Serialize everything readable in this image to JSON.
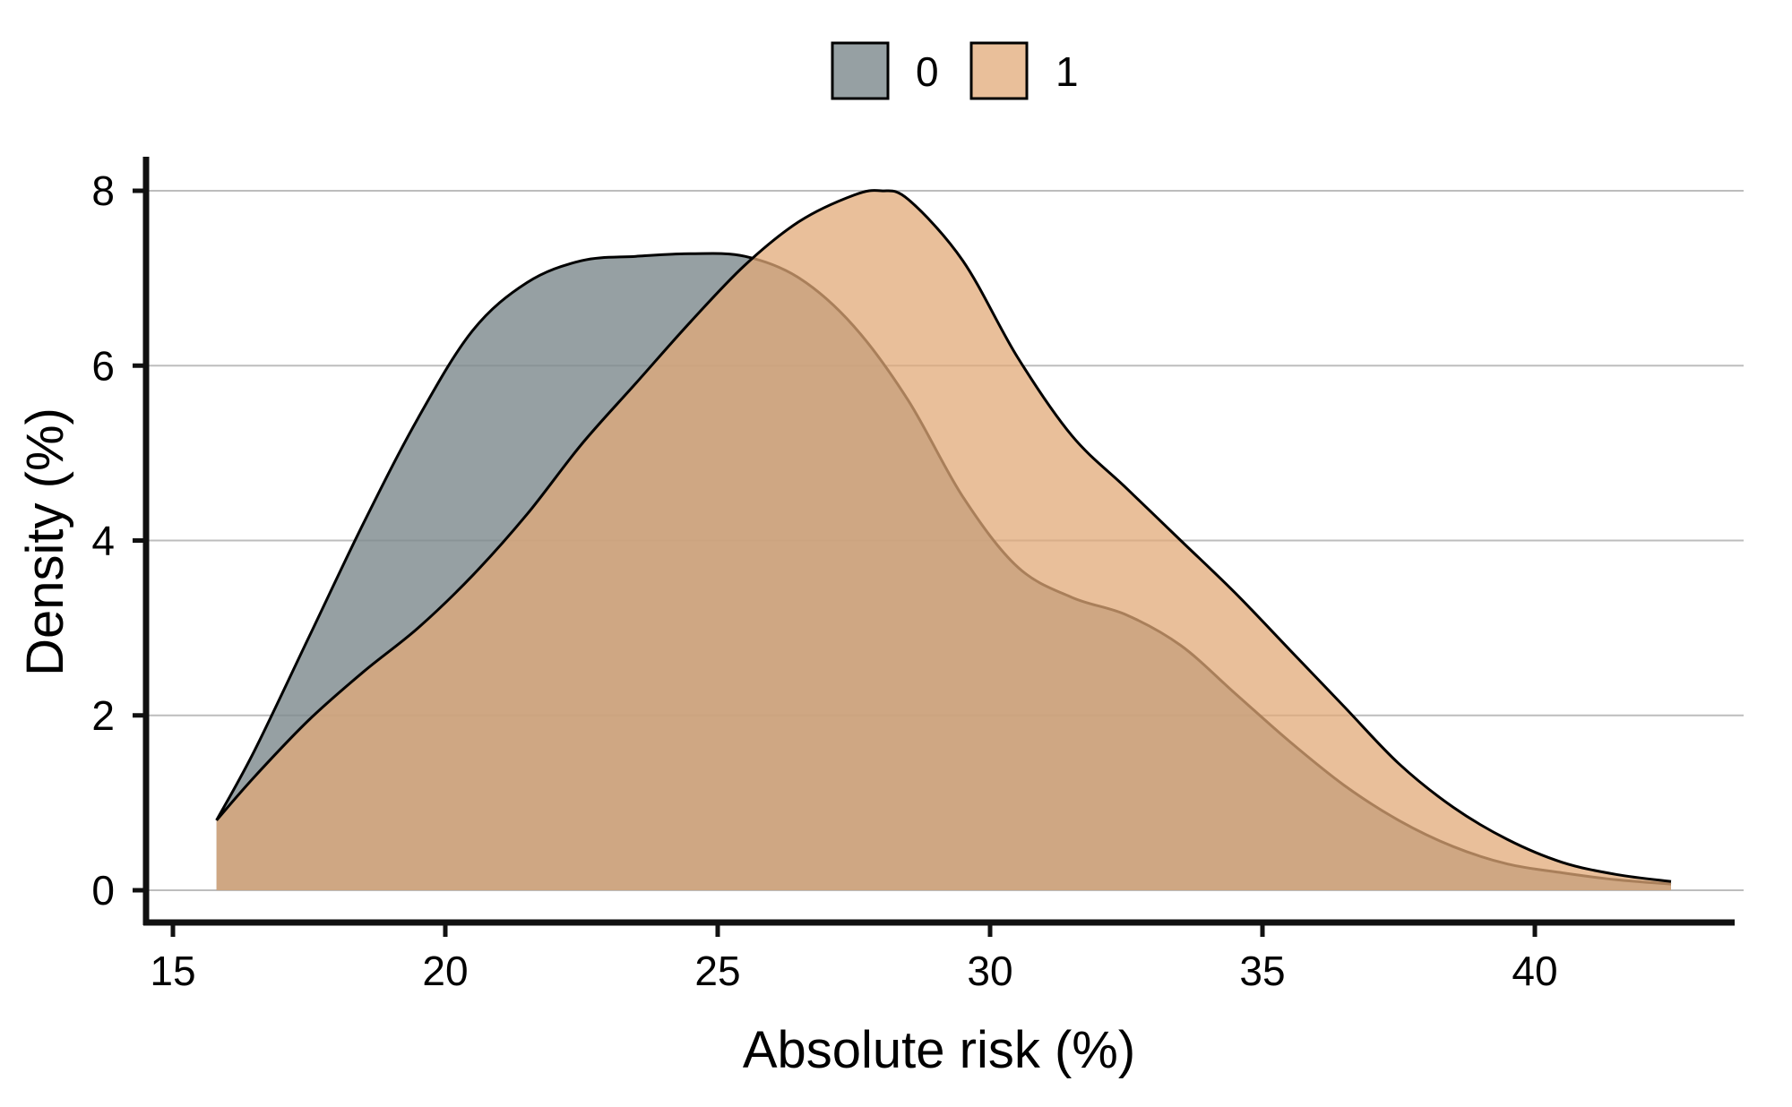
{
  "chart_data": {
    "type": "area",
    "subtype": "density",
    "xlabel": "Absolute risk (%)",
    "ylabel": "Density (%)",
    "xlim": [
      14.5,
      43.5
    ],
    "ylim": [
      0,
      8.4
    ],
    "xticks": [
      15,
      20,
      25,
      30,
      35,
      40
    ],
    "yticks": [
      0,
      2,
      4,
      6,
      8
    ],
    "grid": "horizontal",
    "legend_position": "top",
    "series": [
      {
        "name": "0",
        "color": "#7f8b8f",
        "opacity": 0.82,
        "x": [
          15.8,
          16.5,
          17.5,
          18.5,
          19.5,
          20.5,
          21.5,
          22.5,
          23.5,
          24.5,
          25.5,
          26.5,
          27.5,
          28.5,
          29.5,
          30.5,
          31.5,
          32.5,
          33.5,
          34.5,
          35.5,
          36.5,
          37.5,
          38.5,
          39.5,
          40.5,
          41.5,
          42.5
        ],
        "y": [
          0.8,
          1.6,
          2.9,
          4.2,
          5.4,
          6.4,
          6.95,
          7.2,
          7.25,
          7.28,
          7.25,
          7.0,
          6.45,
          5.6,
          4.5,
          3.7,
          3.35,
          3.15,
          2.8,
          2.25,
          1.7,
          1.2,
          0.8,
          0.5,
          0.3,
          0.2,
          0.12,
          0.07
        ]
      },
      {
        "name": "1",
        "color": "#e2aa78",
        "opacity": 0.75,
        "x": [
          15.8,
          16.5,
          17.5,
          18.5,
          19.5,
          20.5,
          21.5,
          22.5,
          23.5,
          24.5,
          25.5,
          26.5,
          27.5,
          28.0,
          28.5,
          29.5,
          30.5,
          31.5,
          32.5,
          33.5,
          34.5,
          35.5,
          36.5,
          37.5,
          38.5,
          39.5,
          40.5,
          41.5,
          42.5
        ],
        "y": [
          0.8,
          1.3,
          1.95,
          2.5,
          3.0,
          3.6,
          4.3,
          5.1,
          5.8,
          6.5,
          7.15,
          7.65,
          7.95,
          8.0,
          7.9,
          7.2,
          6.1,
          5.2,
          4.6,
          4.0,
          3.4,
          2.75,
          2.1,
          1.45,
          0.95,
          0.58,
          0.32,
          0.18,
          0.1
        ]
      }
    ]
  }
}
